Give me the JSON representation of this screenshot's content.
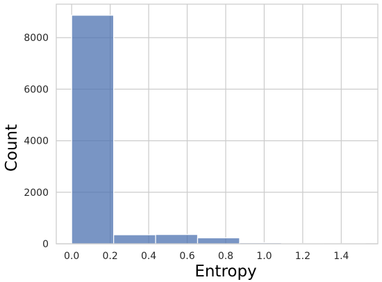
{
  "chart_data": {
    "type": "bar",
    "title": "",
    "xlabel": "Entropy",
    "ylabel": "Count",
    "xlim": [
      -0.08,
      1.59
    ],
    "ylim": [
      0,
      9300
    ],
    "grid": true,
    "bar_color": "#4c72b0",
    "bins": [
      {
        "x0": 0.0,
        "x1": 0.218,
        "count": 8870
      },
      {
        "x0": 0.218,
        "x1": 0.436,
        "count": 350
      },
      {
        "x0": 0.436,
        "x1": 0.654,
        "count": 360
      },
      {
        "x0": 0.654,
        "x1": 0.872,
        "count": 230
      },
      {
        "x0": 0.872,
        "x1": 1.09,
        "count": 40
      },
      {
        "x0": 1.09,
        "x1": 1.308,
        "count": 10
      },
      {
        "x0": 1.308,
        "x1": 1.526,
        "count": 5
      }
    ],
    "xticks": [
      0.0,
      0.2,
      0.4,
      0.6,
      0.8,
      1.0,
      1.2,
      1.4
    ],
    "xtick_labels": [
      "0.0",
      "0.2",
      "0.4",
      "0.6",
      "0.8",
      "1.0",
      "1.2",
      "1.4"
    ],
    "yticks": [
      0,
      2000,
      4000,
      6000,
      8000
    ],
    "ytick_labels": [
      "0",
      "2000",
      "4000",
      "6000",
      "8000"
    ]
  }
}
